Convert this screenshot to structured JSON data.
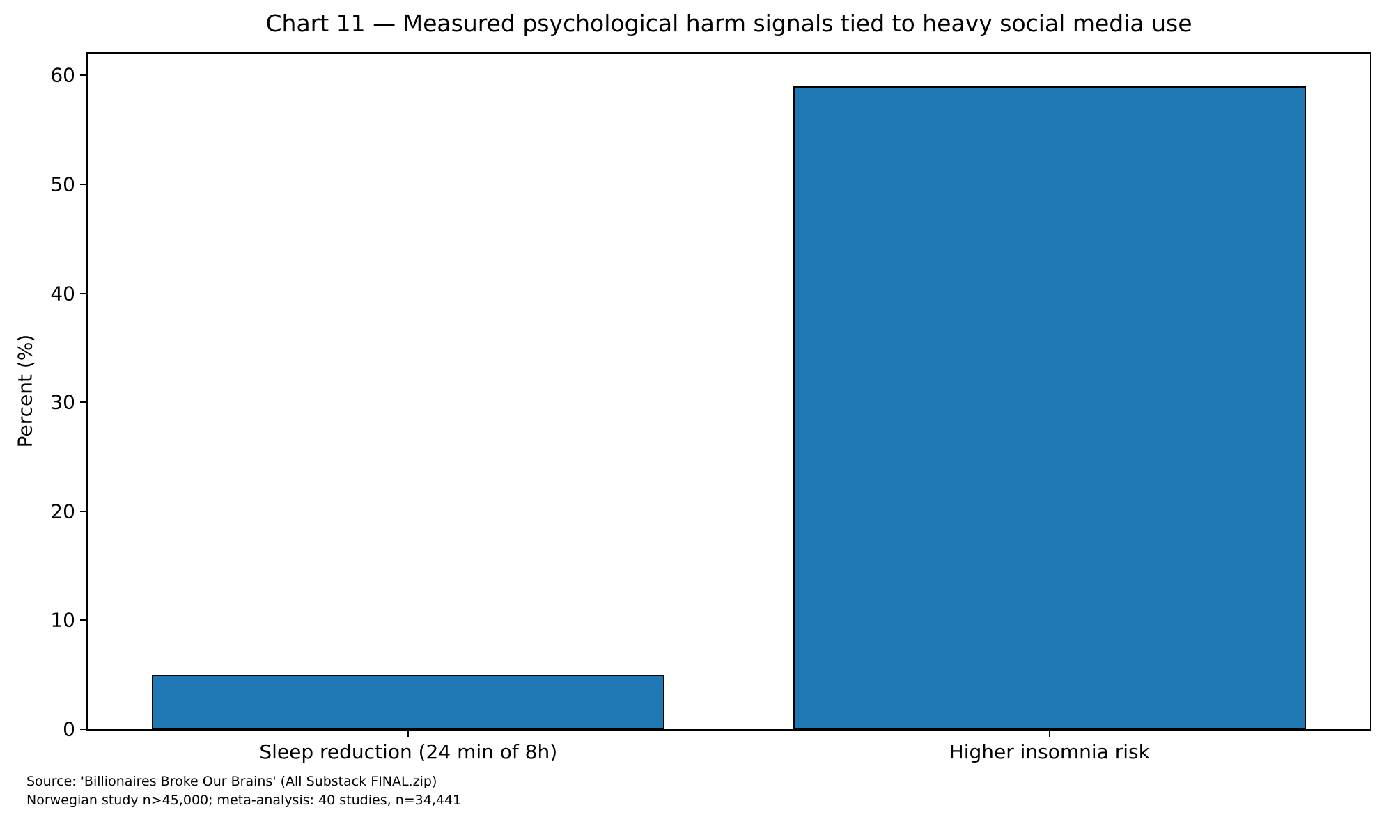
{
  "chart_data": {
    "type": "bar",
    "title": "Chart 11 — Measured psychological harm signals tied to heavy social media use",
    "categories": [
      "Sleep reduction (24 min of 8h)",
      "Higher insomnia risk"
    ],
    "values": [
      5,
      59
    ],
    "xlabel": "",
    "ylabel": "Percent (%)",
    "yticks": [
      0,
      10,
      20,
      30,
      40,
      50,
      60
    ],
    "ylim": [
      0,
      62
    ],
    "xlim": [
      -0.5,
      1.5
    ],
    "bar_width": 0.8,
    "bar_color": "#1f77b4",
    "bar_edge_color": "#000000",
    "grid": false,
    "legend": null
  },
  "footer": {
    "line1": "Source: 'Billionaires Broke Our Brains' (All Substack FINAL.zip)",
    "line2": "Norwegian study n>45,000; meta-analysis: 40 studies, n=34,441"
  }
}
